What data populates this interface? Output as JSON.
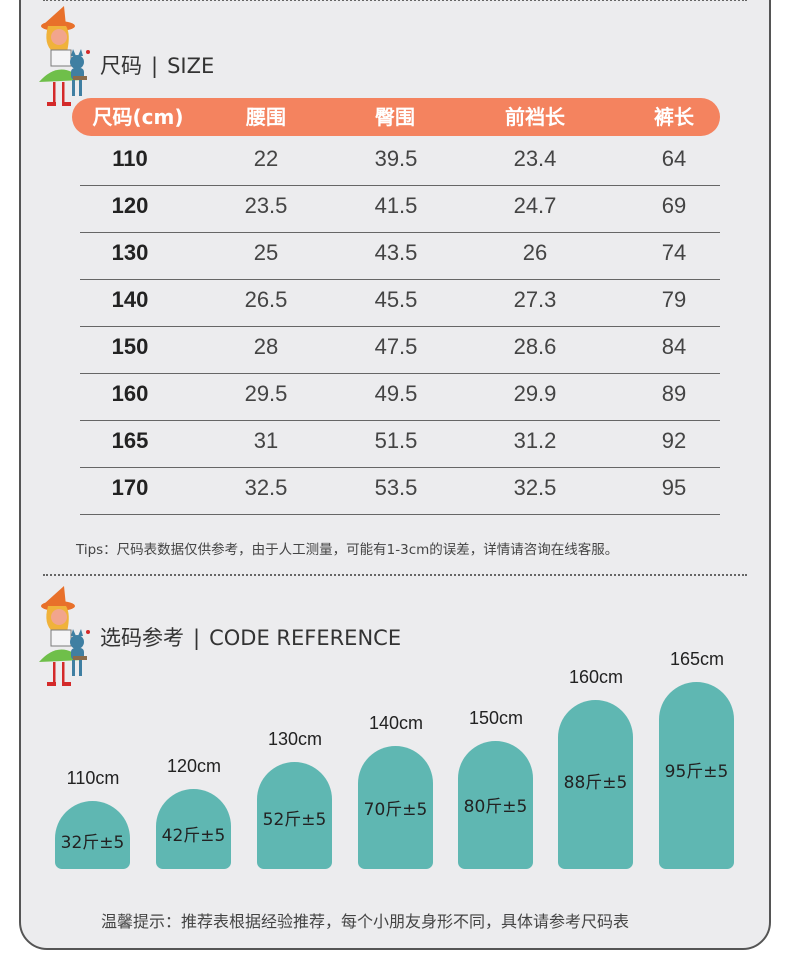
{
  "size_section": {
    "title": "尺码",
    "sep": "|",
    "title_en": "SIZE"
  },
  "size_table": {
    "headers": [
      "尺码(cm)",
      "腰围",
      "臀围",
      "前裆长",
      "裤长"
    ],
    "rows": [
      [
        "110",
        "22",
        "39.5",
        "23.4",
        "64"
      ],
      [
        "120",
        "23.5",
        "41.5",
        "24.7",
        "69"
      ],
      [
        "130",
        "25",
        "43.5",
        "26",
        "74"
      ],
      [
        "140",
        "26.5",
        "45.5",
        "27.3",
        "79"
      ],
      [
        "150",
        "28",
        "47.5",
        "28.6",
        "84"
      ],
      [
        "160",
        "29.5",
        "49.5",
        "29.9",
        "89"
      ],
      [
        "165",
        "31",
        "51.5",
        "31.2",
        "92"
      ],
      [
        "170",
        "32.5",
        "53.5",
        "32.5",
        "95"
      ]
    ]
  },
  "tips": "Tips：尺码表数据仅供参考，由于人工测量，可能有1-3cm的误差，详情请咨询在线客服。",
  "ref_section": {
    "title": "选码参考",
    "sep": "|",
    "title_en": "CODE REFERENCE"
  },
  "chart_data": {
    "type": "bar",
    "categories": [
      "110cm",
      "120cm",
      "130cm",
      "140cm",
      "150cm",
      "160cm",
      "165cm"
    ],
    "values": [
      32,
      42,
      52,
      70,
      80,
      88,
      95
    ],
    "labels": [
      "32斤±5",
      "42斤±5",
      "52斤±5",
      "70斤±5",
      "80斤±5",
      "88斤±5",
      "95斤±5"
    ],
    "title": "",
    "xlabel": "",
    "ylabel": "",
    "color": "#5fb7b2"
  },
  "bottom_tip": "温馨提示：推荐表根据经验推荐，每个小朋友身形不同，具体请参考尺码表",
  "colors": {
    "header": "#f4835f",
    "bar": "#5fb7b2",
    "background": "#ececee"
  },
  "icons": {
    "mascot": "witch-and-cat-mascot-icon"
  }
}
